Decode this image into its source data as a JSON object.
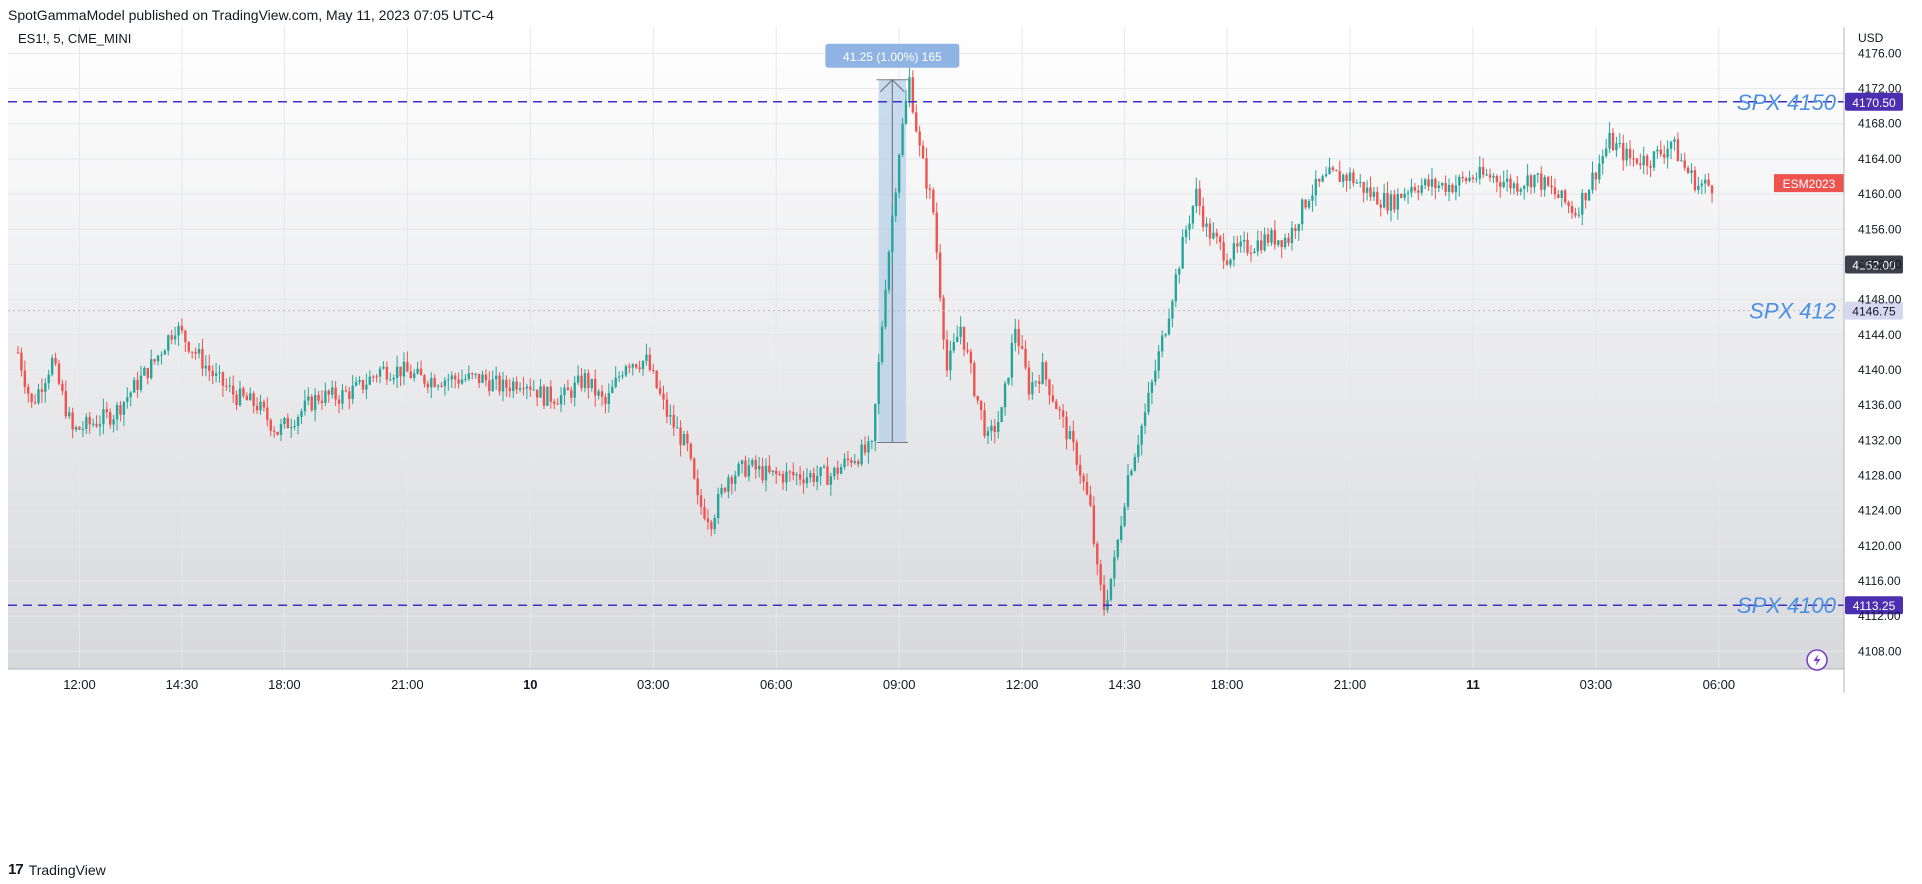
{
  "header": {
    "publisher_text": "SpotGammaModel published on TradingView.com, May 11, 2023 07:05 UTC-4"
  },
  "footer": {
    "brand": "TradingView",
    "logo_glyph": "17"
  },
  "colors": {
    "up": "#26a69a",
    "down": "#ef5350",
    "level_line": "#3f2fc9",
    "label_text": "#4a90e2",
    "measure_fill": "#b3cde8",
    "measure_label_bg": "#8fb4e3"
  },
  "chart_data": {
    "type": "candlestick",
    "symbol": "ES1!, 5, CME_MINI",
    "currency": "USD",
    "ylim": [
      4106,
      4179
    ],
    "y_ticks": [
      "4108.00",
      "4112.00",
      "4116.00",
      "4120.00",
      "4124.00",
      "4128.00",
      "4132.00",
      "4136.00",
      "4140.00",
      "4144.00",
      "4148.00",
      "4152.00",
      "4156.00",
      "4160.00",
      "4164.00",
      "4168.00",
      "4172.00",
      "4176.00"
    ],
    "x_ticks": [
      {
        "label": "12:00",
        "bar": 18
      },
      {
        "label": "14:30",
        "bar": 48
      },
      {
        "label": "18:00",
        "bar": 78
      },
      {
        "label": "21:00",
        "bar": 114
      },
      {
        "label": "10",
        "bar": 150,
        "bold": true
      },
      {
        "label": "03:00",
        "bar": 186
      },
      {
        "label": "06:00",
        "bar": 222
      },
      {
        "label": "09:00",
        "bar": 258
      },
      {
        "label": "12:00",
        "bar": 294
      },
      {
        "label": "14:30",
        "bar": 324
      },
      {
        "label": "18:00",
        "bar": 354
      },
      {
        "label": "21:00",
        "bar": 390
      },
      {
        "label": "11",
        "bar": 426,
        "bold": true
      },
      {
        "label": "03:00",
        "bar": 462
      },
      {
        "label": "06:00",
        "bar": 498
      }
    ],
    "total_bars": 520,
    "levels": [
      {
        "label": "SPX 4150",
        "price_text": "4170.50",
        "value": 4170.5,
        "style": "dashed"
      },
      {
        "label": "SPX 412",
        "price_text": "4146.75",
        "value": 4146.75,
        "style": "dotted"
      },
      {
        "label": "SPX 4100",
        "price_text": "4113.25",
        "value": 4113.25,
        "style": "dashed"
      }
    ],
    "last_price": {
      "label": "ESM2023",
      "value": 4161.25
    },
    "crosshair_price": {
      "text": "4152.00",
      "value": 4152.0
    },
    "measure": {
      "text": "41.25 (1.00%) 165",
      "from_bar": 252,
      "to_bar": 260,
      "low": 4131.75,
      "high": 4173.0
    },
    "candles_path": [
      [
        0,
        4142
      ],
      [
        4,
        4136
      ],
      [
        10,
        4141
      ],
      [
        16,
        4133
      ],
      [
        22,
        4134
      ],
      [
        28,
        4135
      ],
      [
        34,
        4138
      ],
      [
        40,
        4141
      ],
      [
        46,
        4145
      ],
      [
        52,
        4142
      ],
      [
        58,
        4139
      ],
      [
        64,
        4137
      ],
      [
        70,
        4136
      ],
      [
        76,
        4133
      ],
      [
        82,
        4135
      ],
      [
        88,
        4137
      ],
      [
        94,
        4137
      ],
      [
        100,
        4138
      ],
      [
        106,
        4140
      ],
      [
        112,
        4140
      ],
      [
        118,
        4139
      ],
      [
        124,
        4139
      ],
      [
        130,
        4139
      ],
      [
        136,
        4139
      ],
      [
        142,
        4138
      ],
      [
        148,
        4139
      ],
      [
        154,
        4137
      ],
      [
        160,
        4137
      ],
      [
        166,
        4139
      ],
      [
        172,
        4136
      ],
      [
        178,
        4141
      ],
      [
        184,
        4141
      ],
      [
        190,
        4135
      ],
      [
        196,
        4131
      ],
      [
        199,
        4125
      ],
      [
        203,
        4123
      ],
      [
        208,
        4128
      ],
      [
        214,
        4129
      ],
      [
        220,
        4128
      ],
      [
        226,
        4128
      ],
      [
        232,
        4128
      ],
      [
        238,
        4128
      ],
      [
        244,
        4130
      ],
      [
        250,
        4131
      ],
      [
        254,
        4150
      ],
      [
        258,
        4165
      ],
      [
        261,
        4173
      ],
      [
        264,
        4165
      ],
      [
        268,
        4158
      ],
      [
        272,
        4140
      ],
      [
        276,
        4145
      ],
      [
        280,
        4138
      ],
      [
        284,
        4132
      ],
      [
        288,
        4135
      ],
      [
        292,
        4145
      ],
      [
        296,
        4138
      ],
      [
        300,
        4140
      ],
      [
        304,
        4136
      ],
      [
        310,
        4130
      ],
      [
        314,
        4124
      ],
      [
        316,
        4117
      ],
      [
        318,
        4113
      ],
      [
        321,
        4118
      ],
      [
        325,
        4128
      ],
      [
        330,
        4135
      ],
      [
        336,
        4145
      ],
      [
        342,
        4156
      ],
      [
        345,
        4160
      ],
      [
        348,
        4156
      ],
      [
        354,
        4153
      ],
      [
        360,
        4154
      ],
      [
        366,
        4155
      ],
      [
        372,
        4155
      ],
      [
        378,
        4160
      ],
      [
        384,
        4162
      ],
      [
        390,
        4162
      ],
      [
        396,
        4160
      ],
      [
        402,
        4159
      ],
      [
        408,
        4161
      ],
      [
        414,
        4161
      ],
      [
        420,
        4161
      ],
      [
        426,
        4162
      ],
      [
        432,
        4162
      ],
      [
        438,
        4161
      ],
      [
        444,
        4162
      ],
      [
        450,
        4160
      ],
      [
        456,
        4158
      ],
      [
        460,
        4161
      ],
      [
        466,
        4166
      ],
      [
        472,
        4164
      ],
      [
        478,
        4164
      ],
      [
        482,
        4165
      ],
      [
        484,
        4166
      ],
      [
        488,
        4163
      ],
      [
        492,
        4161
      ],
      [
        496,
        4161
      ]
    ]
  }
}
